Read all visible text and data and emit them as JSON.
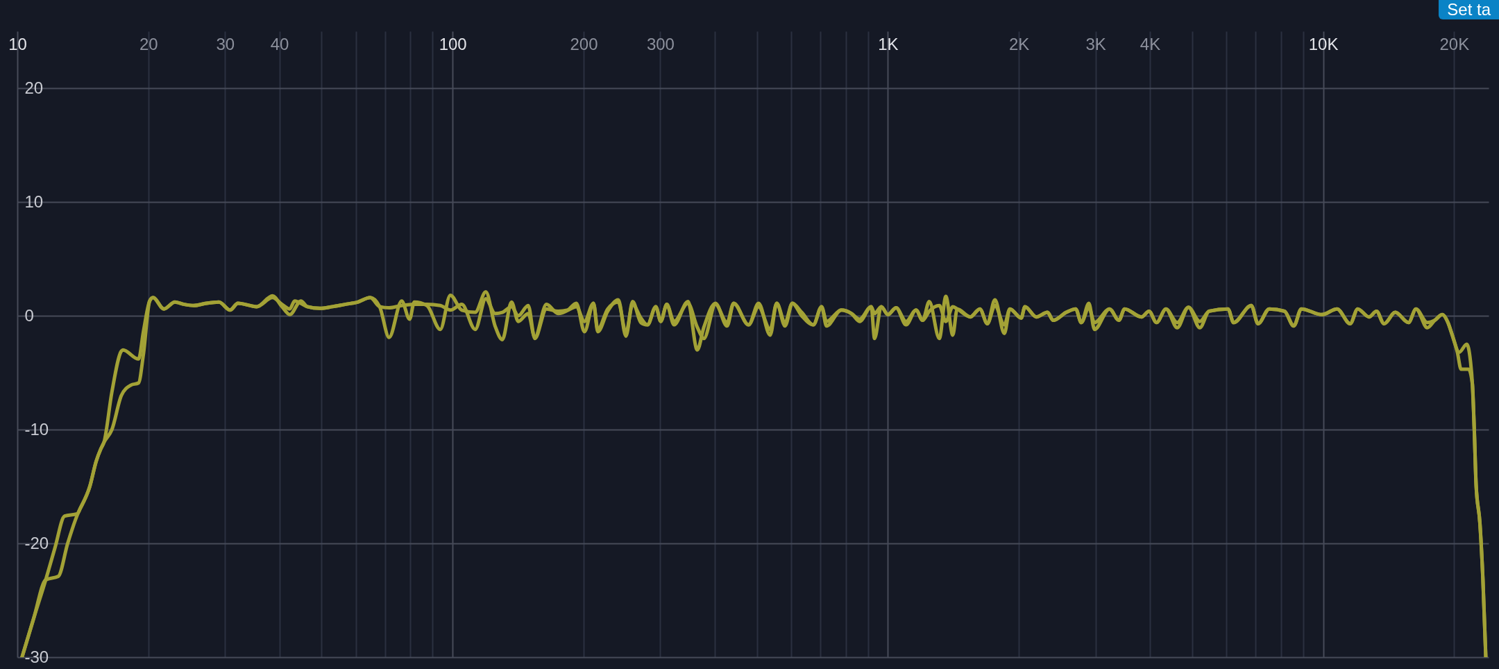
{
  "chart_data": {
    "type": "line",
    "log": "x",
    "grid": true,
    "xlim": [
      10,
      24000
    ],
    "ylim": [
      -30,
      25
    ],
    "xticks": [
      10,
      20,
      30,
      40,
      {
        "value": 50,
        "label": null
      },
      {
        "value": 60,
        "label": null
      },
      {
        "value": 70,
        "label": null
      },
      {
        "value": 80,
        "label": null
      },
      {
        "value": 90,
        "label": null
      },
      100,
      200,
      300,
      {
        "value": 400,
        "label": null
      },
      {
        "value": 500,
        "label": null
      },
      {
        "value": 600,
        "label": null
      },
      {
        "value": 700,
        "label": null
      },
      {
        "value": 800,
        "label": null
      },
      {
        "value": 900,
        "label": null
      },
      {
        "value": 1000,
        "label": "1K"
      },
      {
        "value": 2000,
        "label": "2K"
      },
      {
        "value": 3000,
        "label": "3K"
      },
      {
        "value": 4000,
        "label": "4K"
      },
      {
        "value": 5000,
        "label": null
      },
      {
        "value": 6000,
        "label": null
      },
      {
        "value": 7000,
        "label": null
      },
      {
        "value": 8000,
        "label": null
      },
      {
        "value": 9000,
        "label": null
      },
      {
        "value": 10000,
        "label": "10K"
      },
      {
        "value": 20000,
        "label": "20K"
      }
    ],
    "yticks": [
      -30,
      -20,
      -10,
      0,
      10,
      20
    ],
    "annotations": [
      "Set ta"
    ],
    "series": [
      {
        "color": "#a3a236",
        "x": [
          10.25,
          10.9,
          11.62,
          12.2,
          12.84,
          13.73,
          13.96,
          14.67,
          15.17,
          15.55,
          15.82,
          16.49,
          17.34,
          17.48,
          18.99,
          19.48,
          20.14,
          20.5,
          21.71,
          23.01,
          24.19,
          25.43,
          27.19,
          29.06,
          30.81,
          32.12,
          35.49,
          38.58,
          40.55,
          42.27,
          44.83,
          46.35,
          49.54,
          52.96,
          56.6,
          60.5,
          64.68,
          67.98,
          71.47,
          76.4,
          79.65,
          81.66,
          87.3,
          93.7,
          98.8,
          105,
          112.7,
          119.2,
          125.2,
          130.1,
          136.6,
          141.5,
          149.2,
          154.5,
          164.3,
          174.7,
          184.1,
          192.4,
          200.9,
          210.7,
          215.6,
          227.2,
          240.3,
          250.2,
          259.2,
          270.8,
          280.4,
          293,
          300.8,
          310.5,
          322.7,
          347.3,
          364.8,
          377.9,
          401.8,
          427.2,
          442.4,
          478.7,
          504.6,
          536.5,
          555.6,
          580.5,
          603.3,
          633.9,
          674.2,
          704.3,
          722.9,
          782.2,
          824.6,
          861.5,
          915.9,
          932.1,
          965.6,
          1000,
          1044.8,
          1101.4,
          1160.8,
          1202,
          1245,
          1313,
          1359,
          1410,
          1443,
          1547,
          1627,
          1693,
          1762,
          1852,
          1907,
          2025,
          2065,
          2193,
          2327,
          2398,
          2570,
          2701,
          2783,
          2896,
          2984,
          3231,
          3395,
          3499,
          3825,
          3982,
          4143,
          4355,
          4622,
          4906,
          5208,
          5473,
          6046,
          6229,
          6839,
          7088,
          7523,
          8150,
          8563,
          8912,
          9940,
          10765,
          11538,
          12009,
          12747,
          13265,
          13802,
          14652,
          15712,
          16347,
          17351,
          18055,
          18785,
          19357,
          19745,
          20343,
          20750,
          21593,
          22028,
          22248,
          22469,
          22920,
          23287,
          23650
        ],
        "values": [
          -30.0,
          -26.6,
          -23.2,
          -20.4,
          -17.6,
          -17.4,
          -16.9,
          -15.0,
          -12.8,
          -11.7,
          -11.1,
          -6.7,
          -3.1,
          -3.0,
          -3.8,
          -1.4,
          1.3,
          1.6,
          0.6,
          1.2,
          1.0,
          0.9,
          1.1,
          1.2,
          0.5,
          1.1,
          0.8,
          1.75,
          0.8,
          0.1,
          1.3,
          0.8,
          0.65,
          0.8,
          1.0,
          1.2,
          1.6,
          0.8,
          -1.9,
          1.3,
          -0.3,
          1.2,
          0.9,
          -1.2,
          1.8,
          0.5,
          0.3,
          2.1,
          -0.9,
          -2.1,
          1.2,
          -0.5,
          0.2,
          -1.9,
          1.0,
          0.2,
          0.5,
          1.1,
          -1.4,
          1.1,
          -1.4,
          0.4,
          1.4,
          -1.8,
          1.25,
          -0.6,
          -0.8,
          0.8,
          -0.5,
          1.0,
          -0.8,
          1.25,
          -3.0,
          -1.0,
          1.1,
          -0.9,
          1.1,
          -0.8,
          1.1,
          -1.7,
          1.1,
          -0.9,
          1.1,
          0.0,
          -0.8,
          0.8,
          -0.9,
          0.5,
          0.2,
          -0.5,
          0.8,
          -2.0,
          0.8,
          0.1,
          0.7,
          -0.8,
          0.5,
          -0.4,
          1.25,
          -2.0,
          1.7,
          -1.7,
          0.6,
          -0.1,
          0.6,
          -0.7,
          1.4,
          -1.55,
          0.6,
          -0.2,
          0.8,
          -0.1,
          0.3,
          -0.4,
          0.3,
          0.6,
          -0.6,
          1.1,
          -1.2,
          0.6,
          -0.4,
          0.6,
          -0.1,
          0.4,
          -0.6,
          0.6,
          -1.05,
          0.75,
          -1.05,
          0.4,
          0.6,
          -0.6,
          0.9,
          -0.7,
          0.6,
          0.4,
          -0.9,
          0.6,
          0.1,
          0.6,
          -0.7,
          0.6,
          -0.1,
          0.4,
          -0.7,
          0.3,
          -0.6,
          0.6,
          -1.05,
          -0.4,
          0.1,
          -0.6,
          -1.55,
          -3.2,
          -4.7,
          -4.7,
          -6.0,
          -10.0,
          -14.9,
          -18.2,
          -23.1,
          -30.0
        ]
      },
      {
        "color": "#a3a236",
        "x": [
          10.25,
          10.9,
          11.62,
          12.42,
          13.05,
          13.84,
          13.96,
          14.67,
          15.17,
          15.55,
          15.82,
          16.49,
          17.34,
          18.22,
          18.99,
          19.48,
          20.14,
          20.5,
          21.71,
          23.01,
          24.19,
          25.43,
          27.19,
          29.06,
          30.81,
          32.12,
          35.49,
          38.58,
          40.55,
          42.27,
          43.35,
          46.35,
          49.54,
          52.96,
          56.6,
          60.5,
          64.68,
          67.98,
          71.47,
          76.4,
          81.66,
          87.3,
          93.7,
          98.8,
          105,
          112.7,
          119.2,
          125.2,
          130.1,
          136.6,
          141.5,
          149.2,
          154.5,
          164.3,
          174.7,
          184.1,
          192.4,
          200.9,
          210.7,
          215.6,
          227.2,
          240.3,
          250.2,
          259.2,
          270.8,
          280.4,
          293,
          300.8,
          310.5,
          322.7,
          347.3,
          364.8,
          377.9,
          401.8,
          427.2,
          442.4,
          478.7,
          504.6,
          536.5,
          555.6,
          580.5,
          603.3,
          633.9,
          674.2,
          704.3,
          722.9,
          782.2,
          824.6,
          861.5,
          915.9,
          932.1,
          965.6,
          1000,
          1044.8,
          1101.4,
          1160.8,
          1202,
          1245,
          1313,
          1359,
          1410,
          1443,
          1547,
          1627,
          1693,
          1762,
          1852,
          1907,
          2025,
          2065,
          2193,
          2327,
          2398,
          2570,
          2701,
          2783,
          2896,
          2984,
          3231,
          3395,
          3499,
          3825,
          3982,
          4143,
          4355,
          4622,
          4906,
          5208,
          5473,
          6046,
          6229,
          6839,
          7088,
          7523,
          8150,
          8563,
          8912,
          9940,
          10765,
          11538,
          12009,
          12747,
          13265,
          13802,
          14652,
          15712,
          16347,
          17351,
          18055,
          18785,
          19357,
          19745,
          20546,
          21380,
          21807,
          22028,
          22248,
          22469,
          22920,
          23287,
          23650
        ],
        "values": [
          -30.0,
          -26.6,
          -23.2,
          -22.9,
          -20.0,
          -17.2,
          -16.9,
          -15.0,
          -12.8,
          -11.7,
          -11.1,
          -10.0,
          -7.0,
          -6.1,
          -5.9,
          -3.4,
          1.3,
          1.6,
          0.6,
          1.2,
          1.0,
          0.9,
          1.1,
          1.2,
          0.5,
          1.1,
          0.8,
          1.6,
          1.0,
          0.6,
          1.3,
          0.8,
          0.65,
          0.8,
          1.0,
          1.2,
          1.6,
          0.8,
          0.7,
          0.9,
          1.0,
          1.0,
          0.9,
          0.5,
          1.0,
          -1.2,
          1.5,
          0.2,
          0.3,
          0.8,
          0.0,
          0.9,
          -2.0,
          0.6,
          0.4,
          0.5,
          0.8,
          -0.5,
          1.1,
          -1.2,
          0.6,
          1.2,
          -1.5,
          1.0,
          -0.2,
          -0.8,
          0.8,
          -0.5,
          1.0,
          -0.5,
          1.1,
          -1.0,
          -2.0,
          1.0,
          -0.6,
          1.1,
          -0.8,
          0.8,
          -1.2,
          1.1,
          -0.6,
          1.1,
          0.3,
          -0.8,
          0.8,
          -0.5,
          0.5,
          0.2,
          -0.3,
          0.8,
          0.2,
          0.8,
          0.1,
          0.7,
          -0.5,
          0.5,
          -0.4,
          0.4,
          0.9,
          -0.5,
          0.8,
          0.6,
          -0.1,
          0.6,
          -0.7,
          0.9,
          -0.8,
          0.6,
          -0.2,
          0.8,
          -0.1,
          0.3,
          -0.4,
          0.3,
          0.6,
          -0.6,
          0.7,
          -0.6,
          0.6,
          -0.4,
          0.6,
          -0.1,
          0.4,
          -0.6,
          0.6,
          -0.6,
          0.75,
          -0.5,
          0.4,
          0.6,
          -0.6,
          0.9,
          -0.7,
          0.6,
          0.4,
          -0.9,
          0.6,
          0.1,
          0.6,
          -0.7,
          0.6,
          -0.1,
          0.4,
          -0.7,
          0.3,
          -0.6,
          0.6,
          -0.6,
          -0.4,
          0.1,
          -0.6,
          -1.55,
          -3.2,
          -2.5,
          -4.0,
          -6.0,
          -10.0,
          -14.9,
          -18.2,
          -23.1,
          -30.0
        ]
      }
    ]
  }
}
